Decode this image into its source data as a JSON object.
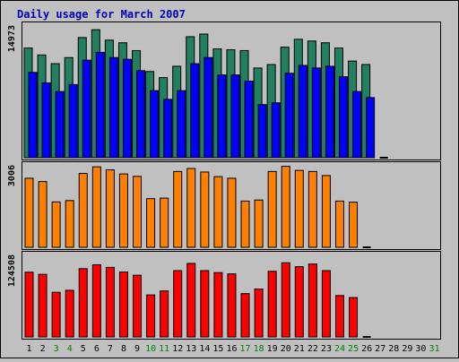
{
  "chart_data": {
    "type": "bar",
    "title": "Daily usage for March 2007",
    "x": [
      "1",
      "2",
      "3",
      "4",
      "5",
      "6",
      "7",
      "8",
      "9",
      "10",
      "11",
      "12",
      "13",
      "14",
      "15",
      "16",
      "17",
      "18",
      "19",
      "20",
      "21",
      "22",
      "23",
      "24",
      "25",
      "26",
      "27",
      "28",
      "29",
      "30",
      "31"
    ],
    "weekend_days": [
      "3",
      "4",
      "10",
      "11",
      "17",
      "18",
      "24",
      "25",
      "31"
    ],
    "panels": [
      {
        "id": "top",
        "ymax_label": "14973",
        "ymax": 14973,
        "series": [
          {
            "values": [
              12600,
              11800,
              10800,
              11500,
              13800,
              14700,
              13500,
              13200,
              12300,
              9900,
              9200,
              10500,
              13900,
              14200,
              12500,
              12400,
              12300,
              10300,
              10700,
              12700,
              13600,
              13400,
              13200,
              12600,
              11100,
              10700,
              0,
              0,
              0,
              0,
              0
            ],
            "color": "#208060"
          },
          {
            "values": [
              9800,
              8600,
              7600,
              8400,
              11200,
              12100,
              11500,
              11300,
              10000,
              7700,
              6700,
              7700,
              10800,
              11500,
              9500,
              9500,
              8800,
              6100,
              6300,
              9700,
              10600,
              10300,
              10500,
              9300,
              7600,
              6900,
              0,
              0,
              0,
              0,
              0
            ],
            "color": "#0000ff"
          }
        ]
      },
      {
        "id": "middle",
        "ymax_label": "3006",
        "ymax": 3006,
        "series": [
          {
            "values": [
              2540,
              2420,
              1670,
              1720,
              2720,
              2960,
              2850,
              2700,
              2610,
              1790,
              1810,
              2790,
              2900,
              2770,
              2600,
              2540,
              1700,
              1740,
              2790,
              2980,
              2830,
              2790,
              2640,
              1700,
              1660,
              0,
              0,
              0,
              0,
              0,
              0
            ],
            "color": "#ff8000"
          }
        ]
      },
      {
        "id": "bottom",
        "ymax_label": "124508",
        "ymax": 124508,
        "series": [
          {
            "values": [
              98600,
              95400,
              68000,
              71000,
              104000,
              110000,
              106000,
              99000,
              94000,
              64000,
              70000,
              101000,
              112000,
              101000,
              98000,
              96000,
              66000,
              73000,
              100000,
              113000,
              107000,
              111000,
              101000,
              63000,
              60000,
              0,
              0,
              0,
              0,
              0,
              0
            ],
            "color": "#ff0000"
          }
        ]
      }
    ],
    "colors": {
      "weekday_label": "#000000",
      "weekend_label": "#008000",
      "title": "#0000b0"
    }
  }
}
